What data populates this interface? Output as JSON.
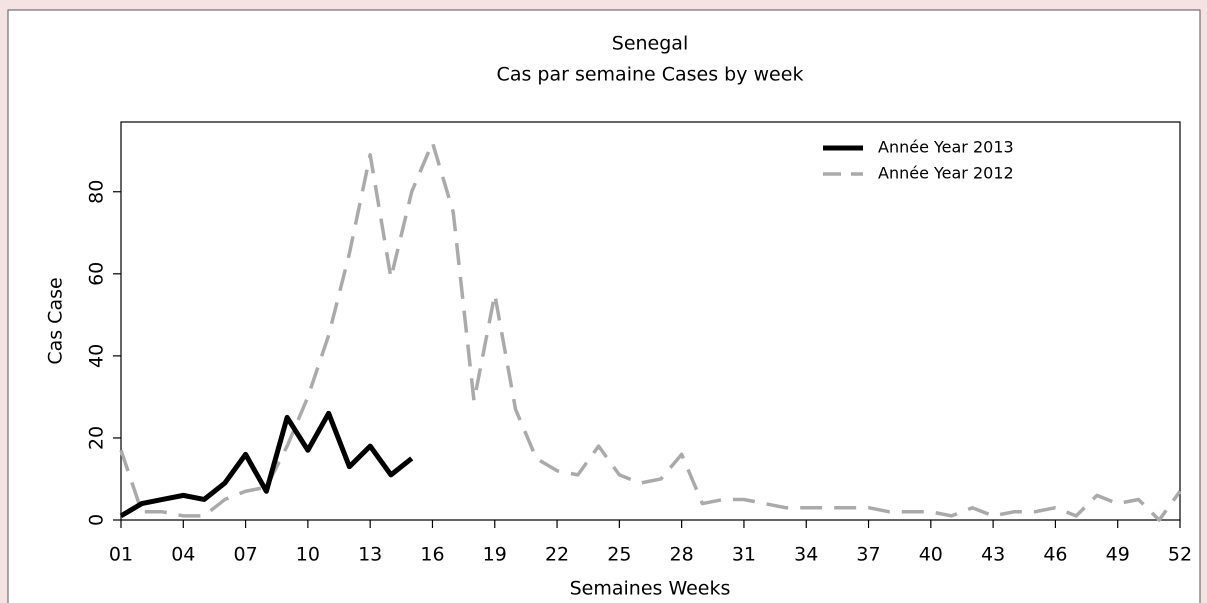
{
  "chart_data": {
    "type": "line",
    "title": "Senegal",
    "subtitle": "Cas par semaine Cases by week",
    "x_label": "Semaines Weeks",
    "y_label": "Cas Case",
    "x": [
      1,
      2,
      3,
      4,
      5,
      6,
      7,
      8,
      9,
      10,
      11,
      12,
      13,
      14,
      15,
      16,
      17,
      18,
      19,
      20,
      21,
      22,
      23,
      24,
      25,
      26,
      27,
      28,
      29,
      30,
      31,
      32,
      33,
      34,
      35,
      36,
      37,
      38,
      39,
      40,
      41,
      42,
      43,
      44,
      45,
      46,
      47,
      48,
      49,
      50,
      51,
      52
    ],
    "series": [
      {
        "name": "Année Year 2013",
        "color": "#000000",
        "dash": "solid",
        "values": [
          1,
          4,
          5,
          6,
          5,
          9,
          16,
          7,
          25,
          17,
          26,
          13,
          18,
          11,
          15,
          null,
          null,
          null,
          null,
          null,
          null,
          null,
          null,
          null,
          null,
          null,
          null,
          null,
          null,
          null,
          null,
          null,
          null,
          null,
          null,
          null,
          null,
          null,
          null,
          null,
          null,
          null,
          null,
          null,
          null,
          null,
          null,
          null,
          null,
          null,
          null,
          null
        ]
      },
      {
        "name": "Année Year 2012",
        "color": "#aaaaaa",
        "dash": "dashed",
        "values": [
          17,
          2,
          2,
          1,
          1,
          5,
          7,
          8,
          18,
          30,
          45,
          65,
          89,
          59,
          80,
          92,
          75,
          29,
          55,
          27,
          15,
          12,
          11,
          18,
          11,
          9,
          10,
          16,
          4,
          5,
          5,
          4,
          3,
          3,
          3,
          3,
          3,
          2,
          2,
          2,
          1,
          3,
          1,
          2,
          2,
          3,
          1,
          6,
          4,
          5,
          0,
          7
        ]
      }
    ],
    "xlim": [
      1,
      52
    ],
    "xticks": [
      {
        "value": 1,
        "label": "01"
      },
      {
        "value": 4,
        "label": "04"
      },
      {
        "value": 7,
        "label": "07"
      },
      10,
      13,
      16,
      19,
      22,
      25,
      28,
      31,
      34,
      37,
      40,
      43,
      46,
      49,
      52
    ],
    "ylim": [
      0,
      97
    ],
    "yticks": [
      0,
      20,
      40,
      60,
      80
    ],
    "legend": "top-right"
  }
}
